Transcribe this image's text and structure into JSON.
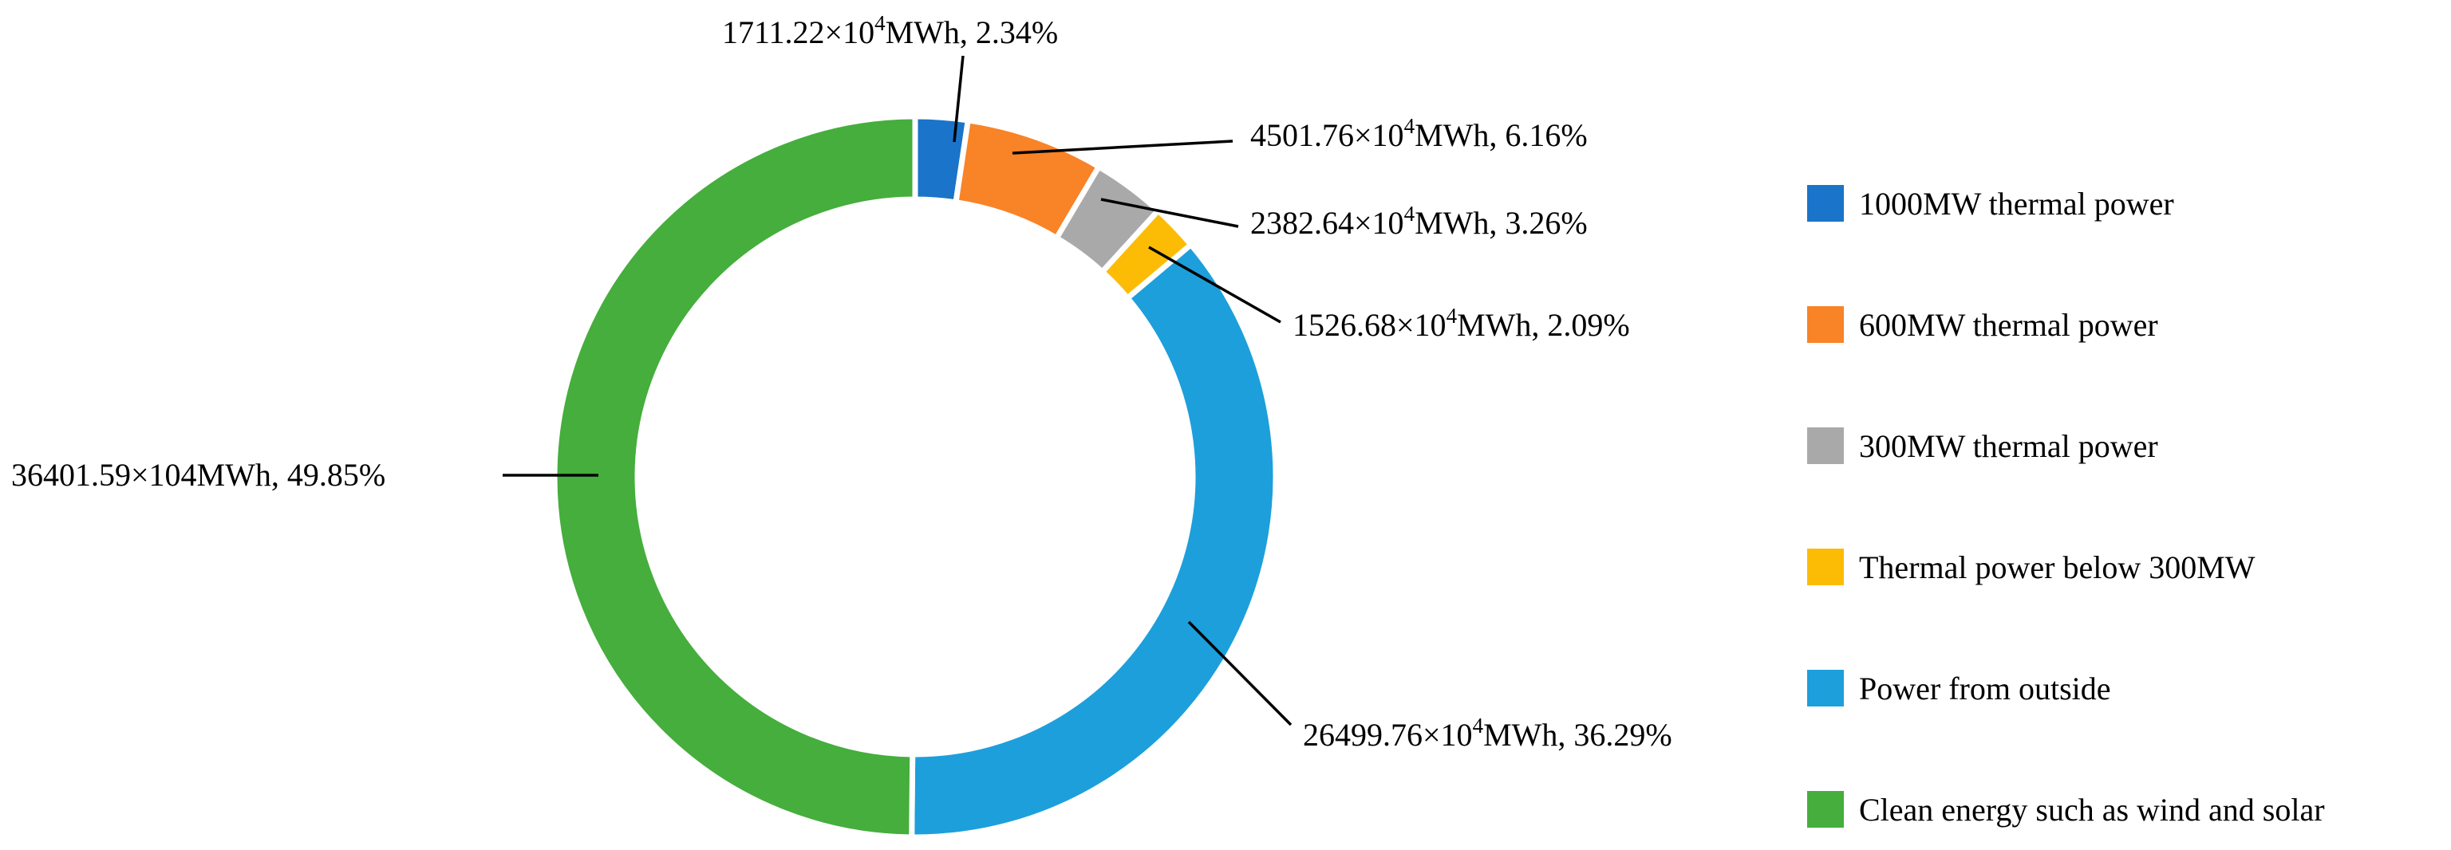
{
  "chart_data": {
    "type": "pie",
    "variant": "donut",
    "title": "",
    "legend": "right",
    "units": "×10⁴MWh",
    "series": [
      {
        "name": "1000MW thermal power",
        "value": 1711.22,
        "percent": 2.34,
        "label": "1711.22×10⁴MWh, 2.34%",
        "color": "#1a74c9"
      },
      {
        "name": "600MW thermal power",
        "value": 4501.76,
        "percent": 6.16,
        "label": "4501.76×10⁴MWh, 6.16%",
        "color": "#f98327"
      },
      {
        "name": "300MW thermal power",
        "value": 2382.64,
        "percent": 3.26,
        "label": "2382.64×10⁴MWh, 3.26%",
        "color": "#a9a9a9"
      },
      {
        "name": "Thermal power below 300MW",
        "value": 1526.68,
        "percent": 2.09,
        "label": "1526.68×10⁴MWh, 2.09%",
        "color": "#fcbc06"
      },
      {
        "name": "Power from outside",
        "value": 26499.76,
        "percent": 36.29,
        "label": "26499.76×10⁴MWh, 36.29%",
        "color": "#1d9fdb"
      },
      {
        "name": "Clean energy such as wind and solar",
        "value": 36401.59,
        "percent": 49.85,
        "label": "36401.59×104MWh, 49.85%",
        "color": "#45ae3c"
      }
    ]
  }
}
